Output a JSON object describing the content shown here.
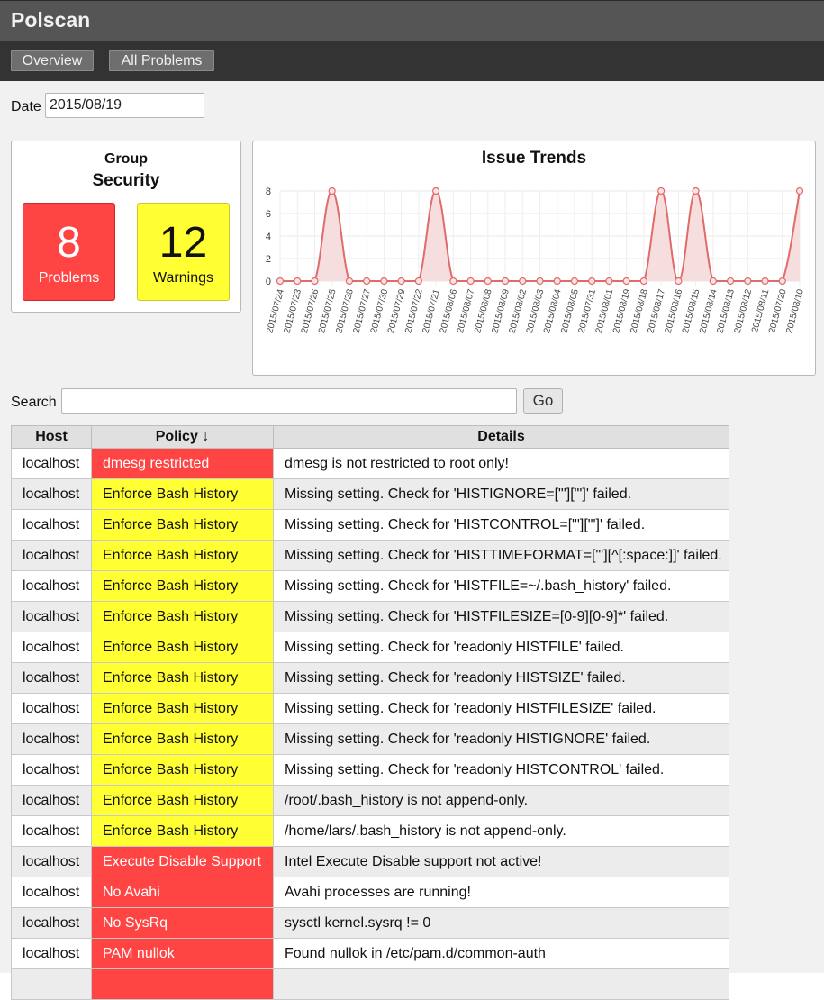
{
  "app": {
    "title": "Polscan"
  },
  "nav": {
    "overview": "Overview",
    "all_problems": "All Problems"
  },
  "date": {
    "label": "Date",
    "value": "2015/08/19"
  },
  "group": {
    "label": "Group",
    "name": "Security",
    "problems_count": "8",
    "problems_label": "Problems",
    "warnings_count": "12",
    "warnings_label": "Warnings",
    "problems_color": "#ff4444",
    "warnings_color": "#ffff33"
  },
  "search": {
    "label": "Search",
    "button": "Go",
    "value": ""
  },
  "table": {
    "headers": {
      "host": "Host",
      "policy": "Policy ↓",
      "details": "Details"
    },
    "rows": [
      {
        "host": "localhost",
        "policy": "dmesg restricted",
        "severity": "failed",
        "details": "dmesg is not restricted to root only!"
      },
      {
        "host": "localhost",
        "policy": "Enforce Bash History",
        "severity": "warning",
        "details": "Missing setting. Check for 'HISTIGNORE=[\"'][\"']' failed."
      },
      {
        "host": "localhost",
        "policy": "Enforce Bash History",
        "severity": "warning",
        "details": "Missing setting. Check for 'HISTCONTROL=[\"'][\"']' failed."
      },
      {
        "host": "localhost",
        "policy": "Enforce Bash History",
        "severity": "warning",
        "details": "Missing setting. Check for 'HISTTIMEFORMAT=[\"'][^[:space:]]' failed."
      },
      {
        "host": "localhost",
        "policy": "Enforce Bash History",
        "severity": "warning",
        "details": "Missing setting. Check for 'HISTFILE=~/.bash_history' failed."
      },
      {
        "host": "localhost",
        "policy": "Enforce Bash History",
        "severity": "warning",
        "details": "Missing setting. Check for 'HISTFILESIZE=[0-9][0-9]*' failed."
      },
      {
        "host": "localhost",
        "policy": "Enforce Bash History",
        "severity": "warning",
        "details": "Missing setting. Check for 'readonly HISTFILE' failed."
      },
      {
        "host": "localhost",
        "policy": "Enforce Bash History",
        "severity": "warning",
        "details": "Missing setting. Check for 'readonly HISTSIZE' failed."
      },
      {
        "host": "localhost",
        "policy": "Enforce Bash History",
        "severity": "warning",
        "details": "Missing setting. Check for 'readonly HISTFILESIZE' failed."
      },
      {
        "host": "localhost",
        "policy": "Enforce Bash History",
        "severity": "warning",
        "details": "Missing setting. Check for 'readonly HISTIGNORE' failed."
      },
      {
        "host": "localhost",
        "policy": "Enforce Bash History",
        "severity": "warning",
        "details": "Missing setting. Check for 'readonly HISTCONTROL' failed."
      },
      {
        "host": "localhost",
        "policy": "Enforce Bash History",
        "severity": "warning",
        "details": "/root/.bash_history is not append-only."
      },
      {
        "host": "localhost",
        "policy": "Enforce Bash History",
        "severity": "warning",
        "details": "/home/lars/.bash_history is not append-only."
      },
      {
        "host": "localhost",
        "policy": "Execute Disable Support",
        "severity": "failed",
        "details": "Intel Execute Disable support not active!"
      },
      {
        "host": "localhost",
        "policy": "No Avahi",
        "severity": "failed",
        "details": "Avahi processes are running!"
      },
      {
        "host": "localhost",
        "policy": "No SysRq",
        "severity": "failed",
        "details": "sysctl kernel.sysrq != 0"
      },
      {
        "host": "localhost",
        "policy": "PAM nullok",
        "severity": "failed",
        "details": "Found nullok in /etc/pam.d/common-auth"
      },
      {
        "host": "",
        "policy": "",
        "severity": "failed",
        "details": ""
      }
    ]
  },
  "chart_data": {
    "type": "area",
    "title": "Issue Trends",
    "x": [
      "2015/07/24",
      "2015/07/23",
      "2015/07/26",
      "2015/07/25",
      "2015/07/28",
      "2015/07/27",
      "2015/07/30",
      "2015/07/29",
      "2015/07/22",
      "2015/07/21",
      "2015/08/06",
      "2015/08/07",
      "2015/08/08",
      "2015/08/09",
      "2015/08/02",
      "2015/08/03",
      "2015/08/04",
      "2015/08/05",
      "2015/07/31",
      "2015/08/01",
      "2015/08/19",
      "2015/08/18",
      "2015/08/17",
      "2015/08/16",
      "2015/08/15",
      "2015/08/14",
      "2015/08/13",
      "2015/08/12",
      "2015/08/11",
      "2015/07/20",
      "2015/08/10"
    ],
    "values": [
      0,
      0,
      0,
      8,
      0,
      0,
      0,
      0,
      0,
      8,
      0,
      0,
      0,
      0,
      0,
      0,
      0,
      0,
      0,
      0,
      0,
      0,
      8,
      0,
      8,
      0,
      0,
      0,
      0,
      0,
      8
    ],
    "yticks": [
      0,
      2,
      4,
      6,
      8
    ],
    "ylim": [
      0,
      8
    ],
    "grid": true,
    "line_color": "#e06b6b",
    "fill_color": "#f6dede"
  }
}
